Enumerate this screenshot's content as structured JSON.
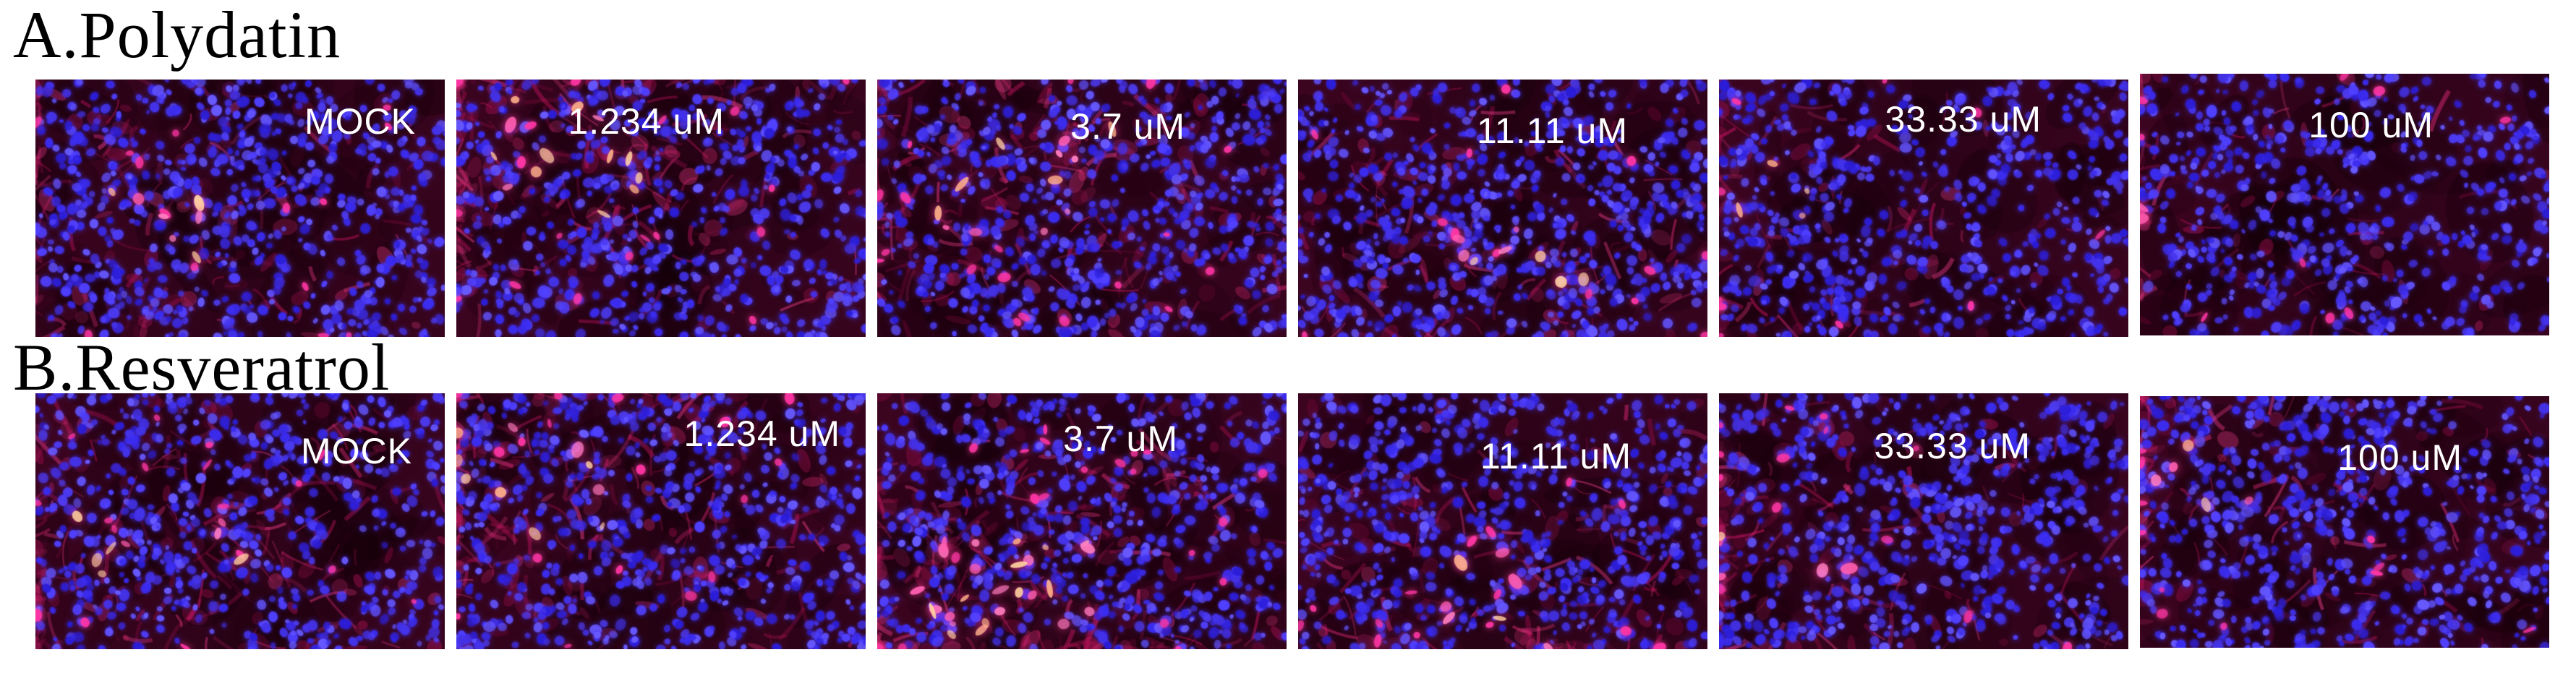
{
  "figure": {
    "colors": {
      "page_background": "#ffffff",
      "section_title_text": "#000000",
      "panel_label_text": "#ffffff",
      "stain_nuclei_blue": "#4130ee",
      "stain_cytoskeleton_red": "#e8176c",
      "stain_bright_magenta": "#ff3da4",
      "micrograph_background": "#35041c"
    },
    "sections": [
      {
        "id": "A",
        "title": "A.Polydatin",
        "panels": [
          {
            "label": "MOCK",
            "render": {
              "seed": 11,
              "red": 0.6,
              "blue": 1.0,
              "bright": 0.25,
              "hx": 0.25,
              "hy": 0.5
            }
          },
          {
            "label": "1.234 uM",
            "render": {
              "seed": 12,
              "red": 0.95,
              "blue": 0.9,
              "bright": 0.5,
              "hx": 0.25,
              "hy": 0.3
            }
          },
          {
            "label": "3.7 uM",
            "render": {
              "seed": 13,
              "red": 0.9,
              "blue": 0.95,
              "bright": 0.5,
              "hx": 0.35,
              "hy": 0.4
            }
          },
          {
            "label": "11.11 uM",
            "render": {
              "seed": 14,
              "red": 0.55,
              "blue": 1.0,
              "bright": 0.3,
              "hx": 0.5,
              "hy": 0.75
            }
          },
          {
            "label": "33.33 uM",
            "render": {
              "seed": 15,
              "red": 0.35,
              "blue": 0.9,
              "bright": 0.15,
              "hx": 0.2,
              "hy": 0.5
            }
          },
          {
            "label": "100 uM",
            "render": {
              "seed": 16,
              "red": 0.3,
              "blue": 0.85,
              "bright": 0.1,
              "hx": 0.15,
              "hy": 0.45
            }
          }
        ]
      },
      {
        "id": "B",
        "title": "B.Resveratrol",
        "panels": [
          {
            "label": "MOCK",
            "render": {
              "seed": 21,
              "red": 0.8,
              "blue": 0.9,
              "bright": 0.3,
              "hx": 0.3,
              "hy": 0.6
            }
          },
          {
            "label": "1.234 uM",
            "render": {
              "seed": 22,
              "red": 0.8,
              "blue": 0.95,
              "bright": 0.4,
              "hx": 0.2,
              "hy": 0.35
            }
          },
          {
            "label": "3.7 uM",
            "render": {
              "seed": 23,
              "red": 1.0,
              "blue": 0.9,
              "bright": 1.0,
              "hx": 0.3,
              "hy": 0.75
            }
          },
          {
            "label": "11.11 uM",
            "render": {
              "seed": 24,
              "red": 0.6,
              "blue": 0.95,
              "bright": 0.25,
              "hx": 0.5,
              "hy": 0.8
            }
          },
          {
            "label": "33.33 uM",
            "render": {
              "seed": 25,
              "red": 0.55,
              "blue": 0.95,
              "bright": 0.2,
              "hx": 0.12,
              "hy": 0.6
            }
          },
          {
            "label": "100 uM",
            "render": {
              "seed": 26,
              "red": 0.5,
              "blue": 0.95,
              "bright": 0.2,
              "hx": 0.12,
              "hy": 0.4
            }
          }
        ]
      }
    ]
  }
}
